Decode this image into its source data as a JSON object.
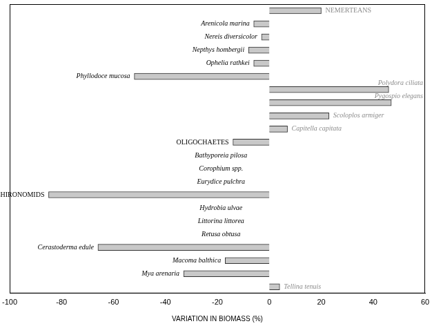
{
  "chart_data": {
    "type": "bar",
    "orientation": "horizontal",
    "x_label": "VARIATION IN BIOMASS (%)",
    "categories": [
      "NEMERTEANS",
      "Arenicola marina",
      "Nereis diversicolor",
      "Nepthys hombergii",
      "Ophelia rathkei",
      "Phyllodoce mucosa",
      "Polydora ciliata",
      "Pygospio elegans",
      "Scoloplos armiger",
      "Capitella capitata",
      "OLIGOCHAETES",
      "Bathyporeia pilosa",
      "Corophium spp.",
      "Eurydice pulchra",
      "CHIRONOMIDS",
      "Hydrobia ulvae",
      "Littorina littorea",
      "Retusa obtusa",
      "Cerastoderma edule",
      "Macoma balthica",
      "Mya arenaria",
      "Tellina tenuis"
    ],
    "values": [
      20,
      -6,
      -3,
      -8,
      -6,
      -52,
      46,
      47,
      23,
      7,
      -14,
      null,
      null,
      null,
      -85,
      null,
      null,
      null,
      -66,
      -17,
      -33,
      4
    ],
    "color": "#c8c8c8",
    "xlim": [
      -100,
      60
    ],
    "xticks": [
      -100,
      -80,
      -60,
      -40,
      -20,
      0,
      20,
      40,
      60
    ],
    "grid": false,
    "tick_labels": "x"
  }
}
